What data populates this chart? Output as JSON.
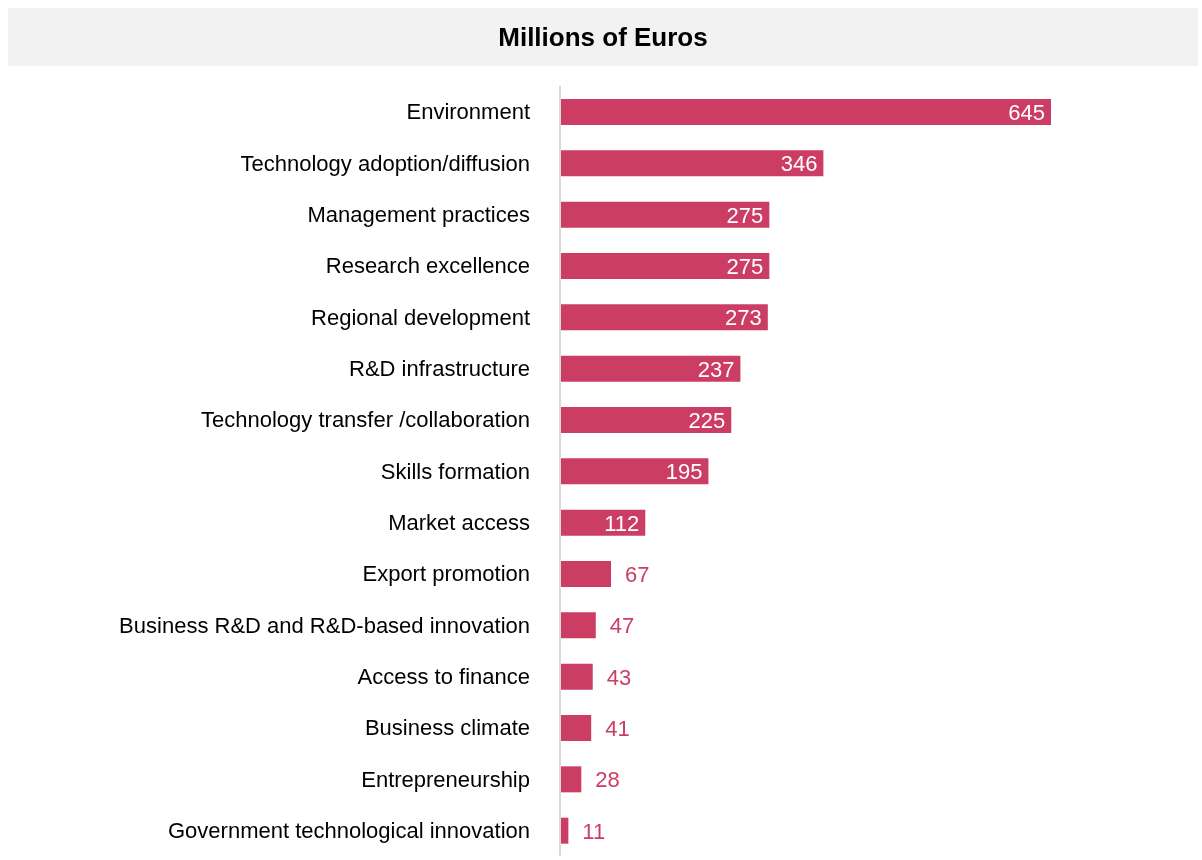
{
  "chart_data": {
    "type": "bar",
    "orientation": "horizontal",
    "title": "Millions of Euros",
    "categories": [
      "Environment",
      "Technology adoption/diffusion",
      "Management practices",
      "Research excellence",
      "Regional development",
      "R&D infrastructure",
      "Technology transfer /collaboration",
      "Skills formation",
      "Market access",
      "Export promotion",
      "Business R&D and R&D-based innovation",
      "Access to finance",
      "Business climate",
      "Entrepreneurship",
      "Government technological innovation"
    ],
    "values": [
      645,
      346,
      275,
      275,
      273,
      237,
      225,
      195,
      112,
      67,
      47,
      43,
      41,
      28,
      11
    ],
    "color": "#cc3d63",
    "data_labels": true,
    "grid": false,
    "legend": false
  }
}
